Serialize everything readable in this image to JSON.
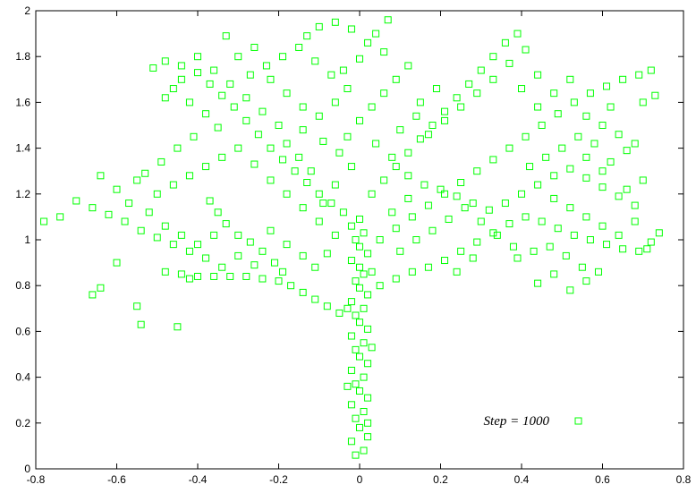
{
  "chart_data": {
    "type": "scatter",
    "title": "",
    "xlabel": "",
    "ylabel": "",
    "xlim": [
      -0.8,
      0.8
    ],
    "ylim": [
      0,
      2
    ],
    "x_ticks": [
      "-0.8",
      "-0.6",
      "-0.4",
      "-0.2",
      "0",
      "0.2",
      "0.4",
      "0.6",
      "0.8"
    ],
    "y_ticks": [
      "0",
      "0.2",
      "0.4",
      "0.6",
      "0.8",
      "1",
      "1.2",
      "1.4",
      "1.6",
      "1.8",
      "2"
    ],
    "grid": false,
    "legend_position": "bottom-right",
    "series": [
      {
        "name": "Step = 1000",
        "color": "#00ff00",
        "marker": "square",
        "points": [
          [
            -0.01,
            0.06
          ],
          [
            0.01,
            0.08
          ],
          [
            -0.02,
            0.12
          ],
          [
            0.02,
            0.14
          ],
          [
            0.0,
            0.18
          ],
          [
            -0.01,
            0.22
          ],
          [
            0.01,
            0.25
          ],
          [
            -0.02,
            0.28
          ],
          [
            0.02,
            0.31
          ],
          [
            0.0,
            0.34
          ],
          [
            -0.01,
            0.37
          ],
          [
            0.01,
            0.4
          ],
          [
            -0.02,
            0.43
          ],
          [
            0.02,
            0.46
          ],
          [
            0.0,
            0.49
          ],
          [
            -0.01,
            0.52
          ],
          [
            0.01,
            0.55
          ],
          [
            -0.02,
            0.58
          ],
          [
            0.02,
            0.61
          ],
          [
            0.0,
            0.64
          ],
          [
            -0.01,
            0.67
          ],
          [
            0.01,
            0.7
          ],
          [
            -0.02,
            0.73
          ],
          [
            0.02,
            0.76
          ],
          [
            0.0,
            0.79
          ],
          [
            -0.01,
            0.82
          ],
          [
            0.01,
            0.85
          ],
          [
            0.0,
            0.88
          ],
          [
            -0.02,
            0.91
          ],
          [
            0.02,
            0.94
          ],
          [
            0.0,
            0.97
          ],
          [
            -0.01,
            1.0
          ],
          [
            0.01,
            1.03
          ],
          [
            -0.02,
            1.06
          ],
          [
            0.0,
            1.09
          ],
          [
            0.02,
            0.2
          ],
          [
            -0.03,
            0.36
          ],
          [
            0.03,
            0.53
          ],
          [
            -0.03,
            0.7
          ],
          [
            0.03,
            0.86
          ],
          [
            -0.05,
            0.68
          ],
          [
            -0.08,
            0.71
          ],
          [
            -0.11,
            0.74
          ],
          [
            -0.14,
            0.77
          ],
          [
            -0.17,
            0.8
          ],
          [
            -0.2,
            0.82
          ],
          [
            -0.24,
            0.83
          ],
          [
            -0.28,
            0.84
          ],
          [
            -0.32,
            0.84
          ],
          [
            -0.36,
            0.84
          ],
          [
            -0.4,
            0.84
          ],
          [
            -0.44,
            0.85
          ],
          [
            -0.19,
            0.86
          ],
          [
            -0.21,
            0.9
          ],
          [
            -0.24,
            0.95
          ],
          [
            -0.27,
            0.99
          ],
          [
            -0.3,
            1.02
          ],
          [
            -0.33,
            1.07
          ],
          [
            -0.35,
            1.12
          ],
          [
            -0.37,
            1.17
          ],
          [
            -0.34,
            0.88
          ],
          [
            -0.38,
            0.92
          ],
          [
            -0.42,
            0.95
          ],
          [
            -0.46,
            0.98
          ],
          [
            -0.5,
            1.01
          ],
          [
            -0.54,
            1.04
          ],
          [
            -0.58,
            1.08
          ],
          [
            -0.62,
            1.11
          ],
          [
            -0.66,
            1.14
          ],
          [
            -0.7,
            1.17
          ],
          [
            -0.74,
            1.1
          ],
          [
            -0.78,
            1.08
          ],
          [
            -0.66,
            0.76
          ],
          [
            -0.64,
            0.79
          ],
          [
            -0.6,
            0.9
          ],
          [
            -0.55,
            0.71
          ],
          [
            -0.54,
            0.63
          ],
          [
            -0.45,
            0.62
          ],
          [
            -0.48,
            0.86
          ],
          [
            -0.42,
            0.83
          ],
          [
            0.05,
            0.8
          ],
          [
            0.09,
            0.83
          ],
          [
            0.13,
            0.86
          ],
          [
            0.17,
            0.88
          ],
          [
            0.21,
            0.91
          ],
          [
            0.25,
            0.95
          ],
          [
            0.29,
            0.99
          ],
          [
            0.33,
            1.03
          ],
          [
            0.37,
            1.07
          ],
          [
            0.41,
            1.1
          ],
          [
            0.45,
            1.08
          ],
          [
            0.49,
            1.05
          ],
          [
            0.53,
            1.02
          ],
          [
            0.57,
            1.0
          ],
          [
            0.61,
            0.98
          ],
          [
            0.65,
            0.96
          ],
          [
            0.69,
            0.95
          ],
          [
            0.72,
            0.99
          ],
          [
            0.74,
            1.03
          ],
          [
            0.71,
            0.96
          ],
          [
            0.39,
            0.92
          ],
          [
            0.43,
            0.95
          ],
          [
            0.47,
            0.97
          ],
          [
            0.51,
            0.93
          ],
          [
            0.55,
            0.88
          ],
          [
            0.59,
            0.86
          ],
          [
            0.48,
            0.85
          ],
          [
            0.44,
            0.81
          ],
          [
            0.52,
            0.78
          ],
          [
            0.56,
            0.82
          ],
          [
            0.05,
            1.0
          ],
          [
            0.09,
            1.05
          ],
          [
            0.13,
            1.1
          ],
          [
            0.17,
            1.15
          ],
          [
            0.21,
            1.2
          ],
          [
            0.25,
            1.25
          ],
          [
            0.29,
            1.3
          ],
          [
            0.33,
            1.35
          ],
          [
            0.37,
            1.4
          ],
          [
            0.41,
            1.45
          ],
          [
            0.45,
            1.5
          ],
          [
            0.49,
            1.55
          ],
          [
            0.53,
            1.6
          ],
          [
            0.57,
            1.64
          ],
          [
            0.61,
            1.67
          ],
          [
            0.65,
            1.7
          ],
          [
            0.69,
            1.72
          ],
          [
            0.72,
            1.74
          ],
          [
            0.73,
            1.63
          ],
          [
            0.7,
            1.6
          ],
          [
            0.2,
            1.22
          ],
          [
            0.24,
            1.19
          ],
          [
            0.28,
            1.16
          ],
          [
            0.32,
            1.13
          ],
          [
            0.36,
            1.16
          ],
          [
            0.4,
            1.2
          ],
          [
            0.44,
            1.24
          ],
          [
            0.48,
            1.28
          ],
          [
            0.52,
            1.31
          ],
          [
            0.56,
            1.27
          ],
          [
            0.6,
            1.23
          ],
          [
            0.64,
            1.19
          ],
          [
            0.68,
            1.15
          ],
          [
            0.62,
            1.34
          ],
          [
            0.66,
            1.39
          ],
          [
            0.58,
            1.42
          ],
          [
            0.54,
            1.45
          ],
          [
            0.5,
            1.4
          ],
          [
            0.46,
            1.36
          ],
          [
            0.42,
            1.32
          ],
          [
            -0.04,
            1.12
          ],
          [
            -0.07,
            1.16
          ],
          [
            -0.1,
            1.2
          ],
          [
            -0.13,
            1.25
          ],
          [
            -0.16,
            1.3
          ],
          [
            -0.19,
            1.35
          ],
          [
            -0.22,
            1.4
          ],
          [
            -0.25,
            1.46
          ],
          [
            -0.28,
            1.52
          ],
          [
            -0.31,
            1.58
          ],
          [
            -0.34,
            1.63
          ],
          [
            -0.37,
            1.68
          ],
          [
            -0.4,
            1.73
          ],
          [
            -0.44,
            1.76
          ],
          [
            -0.48,
            1.78
          ],
          [
            -0.51,
            1.75
          ],
          [
            -0.46,
            1.66
          ],
          [
            -0.42,
            1.6
          ],
          [
            -0.38,
            1.55
          ],
          [
            -0.35,
            1.49
          ],
          [
            -0.12,
            1.3
          ],
          [
            -0.15,
            1.36
          ],
          [
            -0.18,
            1.42
          ],
          [
            -0.14,
            1.48
          ],
          [
            -0.1,
            1.54
          ],
          [
            -0.06,
            1.6
          ],
          [
            -0.03,
            1.66
          ],
          [
            -0.07,
            1.72
          ],
          [
            -0.11,
            1.78
          ],
          [
            -0.15,
            1.84
          ],
          [
            -0.19,
            1.8
          ],
          [
            -0.23,
            1.76
          ],
          [
            -0.27,
            1.72
          ],
          [
            -0.3,
            1.8
          ],
          [
            -0.33,
            1.89
          ],
          [
            -0.26,
            1.84
          ],
          [
            -0.22,
            1.7
          ],
          [
            -0.18,
            1.64
          ],
          [
            -0.14,
            1.58
          ],
          [
            -0.09,
            1.43
          ],
          [
            0.03,
            1.2
          ],
          [
            0.06,
            1.26
          ],
          [
            0.09,
            1.32
          ],
          [
            0.12,
            1.38
          ],
          [
            0.15,
            1.44
          ],
          [
            0.18,
            1.5
          ],
          [
            0.21,
            1.56
          ],
          [
            0.24,
            1.62
          ],
          [
            0.27,
            1.68
          ],
          [
            0.3,
            1.74
          ],
          [
            0.33,
            1.8
          ],
          [
            0.36,
            1.86
          ],
          [
            0.39,
            1.9
          ],
          [
            0.41,
            1.83
          ],
          [
            0.37,
            1.77
          ],
          [
            0.33,
            1.7
          ],
          [
            0.29,
            1.64
          ],
          [
            0.25,
            1.58
          ],
          [
            0.21,
            1.52
          ],
          [
            0.17,
            1.46
          ],
          [
            -0.02,
            1.32
          ],
          [
            -0.05,
            1.38
          ],
          [
            -0.03,
            1.45
          ],
          [
            0.0,
            1.52
          ],
          [
            0.03,
            1.58
          ],
          [
            0.06,
            1.64
          ],
          [
            0.09,
            1.7
          ],
          [
            0.12,
            1.76
          ],
          [
            0.06,
            1.82
          ],
          [
            0.02,
            1.86
          ],
          [
            -0.02,
            1.92
          ],
          [
            -0.06,
            1.95
          ],
          [
            -0.1,
            1.93
          ],
          [
            -0.13,
            1.89
          ],
          [
            0.07,
            1.96
          ],
          [
            0.04,
            1.9
          ],
          [
            0.0,
            1.79
          ],
          [
            -0.04,
            1.74
          ],
          [
            0.15,
            1.6
          ],
          [
            0.19,
            1.66
          ],
          [
            0.44,
            1.58
          ],
          [
            0.48,
            1.64
          ],
          [
            0.52,
            1.7
          ],
          [
            0.44,
            1.72
          ],
          [
            0.4,
            1.66
          ],
          [
            0.56,
            1.54
          ],
          [
            0.6,
            1.5
          ],
          [
            0.64,
            1.46
          ],
          [
            0.68,
            1.42
          ],
          [
            0.62,
            1.58
          ],
          [
            -0.5,
            1.2
          ],
          [
            -0.46,
            1.24
          ],
          [
            -0.42,
            1.28
          ],
          [
            -0.38,
            1.32
          ],
          [
            -0.34,
            1.36
          ],
          [
            -0.3,
            1.4
          ],
          [
            -0.26,
            1.33
          ],
          [
            -0.22,
            1.26
          ],
          [
            -0.18,
            1.2
          ],
          [
            -0.14,
            1.14
          ],
          [
            -0.1,
            1.08
          ],
          [
            -0.55,
            1.26
          ],
          [
            -0.6,
            1.22
          ],
          [
            -0.64,
            1.28
          ],
          [
            -0.57,
            1.16
          ],
          [
            -0.52,
            1.12
          ],
          [
            -0.48,
            1.06
          ],
          [
            -0.44,
            1.02
          ],
          [
            -0.4,
            0.98
          ],
          [
            -0.36,
            1.02
          ],
          [
            -0.3,
            0.93
          ],
          [
            -0.26,
            0.89
          ],
          [
            -0.22,
            1.04
          ],
          [
            -0.18,
            0.98
          ],
          [
            -0.14,
            0.93
          ],
          [
            -0.11,
            0.88
          ],
          [
            -0.08,
            0.94
          ],
          [
            -0.06,
            1.02
          ],
          [
            -0.09,
            1.16
          ],
          [
            -0.06,
            1.24
          ],
          [
            0.1,
            0.95
          ],
          [
            0.14,
            1.0
          ],
          [
            0.18,
            1.04
          ],
          [
            0.22,
            1.09
          ],
          [
            0.26,
            1.14
          ],
          [
            0.3,
            1.08
          ],
          [
            0.34,
            1.02
          ],
          [
            0.38,
            0.97
          ],
          [
            0.28,
            0.92
          ],
          [
            0.24,
            0.86
          ],
          [
            0.08,
            1.12
          ],
          [
            0.12,
            1.18
          ],
          [
            0.16,
            1.24
          ],
          [
            0.12,
            1.28
          ],
          [
            0.08,
            1.36
          ],
          [
            0.04,
            1.42
          ],
          [
            0.1,
            1.48
          ],
          [
            0.14,
            1.54
          ],
          [
            -0.2,
            1.5
          ],
          [
            -0.24,
            1.56
          ],
          [
            -0.28,
            1.62
          ],
          [
            -0.32,
            1.68
          ],
          [
            -0.36,
            1.74
          ],
          [
            -0.4,
            1.8
          ],
          [
            -0.44,
            1.7
          ],
          [
            -0.48,
            1.62
          ],
          [
            -0.41,
            1.45
          ],
          [
            -0.45,
            1.4
          ],
          [
            -0.49,
            1.34
          ],
          [
            -0.53,
            1.29
          ],
          [
            0.48,
            1.18
          ],
          [
            0.52,
            1.14
          ],
          [
            0.56,
            1.1
          ],
          [
            0.6,
            1.06
          ],
          [
            0.64,
            1.02
          ],
          [
            0.68,
            1.08
          ],
          [
            0.66,
            1.22
          ],
          [
            0.7,
            1.26
          ],
          [
            0.6,
            1.3
          ],
          [
            0.56,
            1.36
          ]
        ]
      }
    ]
  }
}
